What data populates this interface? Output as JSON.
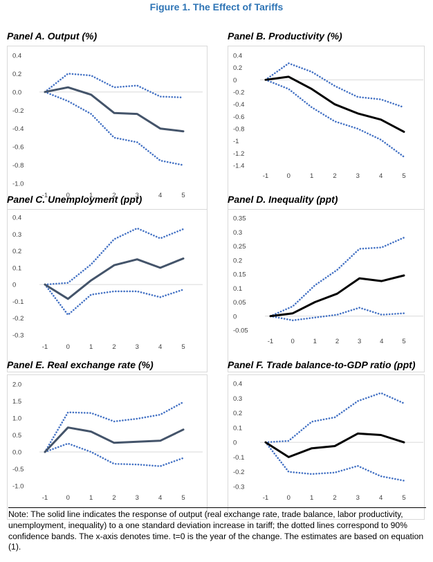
{
  "figure_title": "Figure 1. The Effect of Tariffs",
  "note": "Note: The solid line indicates the response of output (real exchange rate, trade balance, labor productivity, unemployment, inequality) to a one standard deviation increase in tariff; the dotted lines correspond to 90% confidence bands. The x-axis denotes time. t=0 is the year of the change. The estimates are based on equation (1).",
  "colors": {
    "title": "#2e74b5",
    "solid_slate": "#44546a",
    "solid_black": "#000000",
    "band": "#4472c4"
  },
  "chart_data": [
    {
      "id": "A",
      "type": "line",
      "title": "Panel A. Output (%)",
      "x": [
        -1,
        0,
        1,
        2,
        3,
        4,
        5
      ],
      "x_tick_labels": [
        "-1",
        "0",
        "1",
        "2",
        "3",
        "4",
        "5"
      ],
      "y_ticks": [
        0.4,
        0.2,
        0.0,
        -0.2,
        -0.4,
        -0.6,
        -0.8,
        -1.0
      ],
      "y_tick_labels": [
        "0.4",
        "0.2",
        "0.0",
        "-0.2",
        "-0.4",
        "-0.6",
        "-0.8",
        "-1.0"
      ],
      "ylim": [
        -1.0,
        0.4
      ],
      "solid_color": "#44546a",
      "series": [
        {
          "role": "estimate",
          "values": [
            0.0,
            0.05,
            -0.03,
            -0.23,
            -0.24,
            -0.4,
            -0.43
          ]
        },
        {
          "role": "upper",
          "values": [
            0.0,
            0.2,
            0.18,
            0.05,
            0.07,
            -0.05,
            -0.06
          ]
        },
        {
          "role": "lower",
          "values": [
            0.0,
            -0.1,
            -0.24,
            -0.5,
            -0.55,
            -0.75,
            -0.8
          ]
        }
      ]
    },
    {
      "id": "B",
      "type": "line",
      "title": "Panel B. Productivity (%)",
      "x": [
        -1,
        0,
        1,
        2,
        3,
        4,
        5
      ],
      "x_tick_labels": [
        "-1",
        "0",
        "1",
        "2",
        "3",
        "4",
        "5"
      ],
      "y_ticks": [
        0.4,
        0.2,
        0,
        -0.2,
        -0.4,
        -0.6,
        -0.8,
        -1,
        -1.2,
        -1.4
      ],
      "y_tick_labels": [
        "0.4",
        "0.2",
        "0",
        "-0.2",
        "-0.4",
        "-0.6",
        "-0.8",
        "-1",
        "-1.2",
        "-1.4"
      ],
      "ylim": [
        -1.4,
        0.4
      ],
      "solid_color": "#000000",
      "series": [
        {
          "role": "estimate",
          "values": [
            0.0,
            0.05,
            -0.15,
            -0.4,
            -0.55,
            -0.65,
            -0.85
          ]
        },
        {
          "role": "upper",
          "values": [
            0.0,
            0.27,
            0.13,
            -0.1,
            -0.28,
            -0.32,
            -0.45
          ]
        },
        {
          "role": "lower",
          "values": [
            0.0,
            -0.15,
            -0.45,
            -0.68,
            -0.8,
            -0.98,
            -1.26
          ]
        }
      ]
    },
    {
      "id": "C",
      "type": "line",
      "title": "Panel C. Unemployment (ppt)",
      "x": [
        -1,
        0,
        1,
        2,
        3,
        4,
        5
      ],
      "x_tick_labels": [
        "-1",
        "0",
        "1",
        "2",
        "3",
        "4",
        "5"
      ],
      "y_ticks": [
        0.4,
        0.3,
        0.2,
        0.1,
        0,
        -0.1,
        -0.2,
        -0.3
      ],
      "y_tick_labels": [
        "0.4",
        "0.3",
        "0.2",
        "0.1",
        "0",
        "-0.1",
        "-0.2",
        "-0.3"
      ],
      "ylim": [
        -0.3,
        0.4
      ],
      "solid_color": "#44546a",
      "series": [
        {
          "role": "estimate",
          "values": [
            0.0,
            -0.085,
            0.025,
            0.115,
            0.15,
            0.1,
            0.155
          ]
        },
        {
          "role": "upper",
          "values": [
            0.0,
            0.01,
            0.12,
            0.27,
            0.335,
            0.275,
            0.33
          ]
        },
        {
          "role": "lower",
          "values": [
            0.0,
            -0.18,
            -0.06,
            -0.04,
            -0.04,
            -0.075,
            -0.03
          ]
        }
      ]
    },
    {
      "id": "D",
      "type": "line",
      "title": "Panel D. Inequality (ppt)",
      "x": [
        -1,
        0,
        1,
        2,
        3,
        4,
        5
      ],
      "x_tick_labels": [
        "-1",
        "0",
        "1",
        "2",
        "3",
        "4",
        "5"
      ],
      "y_ticks": [
        0.35,
        0.3,
        0.25,
        0.2,
        0.15,
        0.1,
        0.05,
        0,
        -0.05
      ],
      "y_tick_labels": [
        "0.35",
        "0.3",
        "0.25",
        "0.2",
        "0.15",
        "0.1",
        "0.05",
        "0",
        "-0.05"
      ],
      "ylim": [
        -0.05,
        0.35
      ],
      "solid_color": "#000000",
      "series": [
        {
          "role": "estimate",
          "values": [
            0.0,
            0.01,
            0.05,
            0.08,
            0.135,
            0.125,
            0.145
          ]
        },
        {
          "role": "upper",
          "values": [
            0.0,
            0.035,
            0.11,
            0.165,
            0.24,
            0.245,
            0.28
          ]
        },
        {
          "role": "lower",
          "values": [
            0.0,
            -0.015,
            -0.005,
            0.005,
            0.03,
            0.005,
            0.01
          ]
        }
      ]
    },
    {
      "id": "E",
      "type": "line",
      "title": "Panel E. Real exchange rate (%)",
      "x": [
        -1,
        0,
        1,
        2,
        3,
        4,
        5
      ],
      "x_tick_labels": [
        "-1",
        "0",
        "1",
        "2",
        "3",
        "4",
        "5"
      ],
      "y_ticks": [
        2.0,
        1.5,
        1.0,
        0.5,
        0.0,
        -0.5,
        -1.0
      ],
      "y_tick_labels": [
        "2.0",
        "1.5",
        "1.0",
        "0.5",
        "0.0",
        "-0.5",
        "-1.0"
      ],
      "ylim": [
        -1.0,
        2.0
      ],
      "solid_color": "#44546a",
      "series": [
        {
          "role": "estimate",
          "values": [
            0.0,
            0.72,
            0.6,
            0.27,
            0.3,
            0.33,
            0.66
          ]
        },
        {
          "role": "upper",
          "values": [
            0.0,
            1.17,
            1.15,
            0.9,
            0.98,
            1.1,
            1.47
          ]
        },
        {
          "role": "lower",
          "values": [
            0.0,
            0.25,
            0.0,
            -0.35,
            -0.37,
            -0.42,
            -0.18
          ]
        }
      ]
    },
    {
      "id": "F",
      "type": "line",
      "title": "Panel F. Trade balance-to-GDP ratio (ppt)",
      "x": [
        -1,
        0,
        1,
        2,
        3,
        4,
        5
      ],
      "x_tick_labels": [
        "-1",
        "0",
        "1",
        "2",
        "3",
        "4",
        "5"
      ],
      "y_ticks": [
        0.4,
        0.3,
        0.2,
        0.1,
        0,
        -0.1,
        -0.2,
        -0.3
      ],
      "y_tick_labels": [
        "0.4",
        "0.3",
        "0.2",
        "0.1",
        "0",
        "-0.1",
        "-0.2",
        "-0.3"
      ],
      "ylim": [
        -0.3,
        0.4
      ],
      "solid_color": "#000000",
      "series": [
        {
          "role": "estimate",
          "values": [
            0.0,
            -0.1,
            -0.04,
            -0.025,
            0.06,
            0.05,
            0.0
          ]
        },
        {
          "role": "upper",
          "values": [
            0.0,
            0.01,
            0.14,
            0.17,
            0.28,
            0.335,
            0.265
          ]
        },
        {
          "role": "lower",
          "values": [
            0.0,
            -0.2,
            -0.215,
            -0.205,
            -0.16,
            -0.23,
            -0.26
          ]
        }
      ]
    }
  ]
}
